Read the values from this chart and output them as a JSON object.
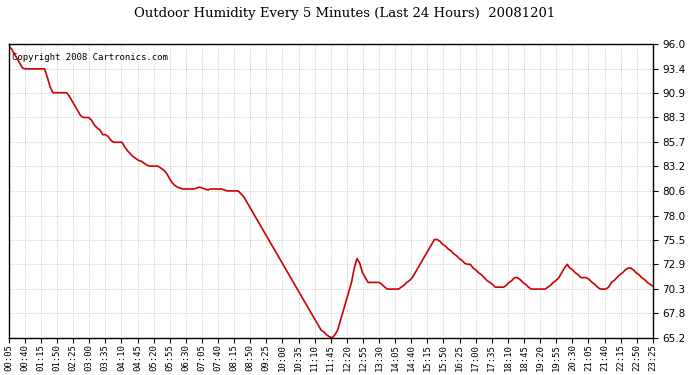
{
  "title": "Outdoor Humidity Every 5 Minutes (Last 24 Hours)  20081201",
  "copyright_text": "Copyright 2008 Cartronics.com",
  "line_color": "#cc0000",
  "background_color": "#ffffff",
  "grid_color": "#bbbbbb",
  "ylim": [
    65.2,
    96.0
  ],
  "yticks": [
    65.2,
    67.8,
    70.3,
    72.9,
    75.5,
    78.0,
    80.6,
    83.2,
    85.7,
    88.3,
    90.9,
    93.4,
    96.0
  ],
  "xtick_labels": [
    "00:05",
    "00:40",
    "01:15",
    "01:50",
    "02:25",
    "03:00",
    "03:35",
    "04:10",
    "04:45",
    "05:20",
    "05:55",
    "06:30",
    "07:05",
    "07:40",
    "08:15",
    "08:50",
    "09:25",
    "10:00",
    "10:35",
    "11:10",
    "11:45",
    "12:20",
    "12:55",
    "13:30",
    "14:05",
    "14:40",
    "15:15",
    "15:50",
    "16:25",
    "17:00",
    "17:35",
    "18:10",
    "18:45",
    "19:20",
    "19:55",
    "20:30",
    "21:05",
    "21:40",
    "22:15",
    "22:50",
    "23:25"
  ],
  "humidity_values": [
    95.8,
    95.5,
    95.0,
    94.5,
    94.0,
    93.5,
    93.4,
    93.4,
    93.4,
    93.4,
    93.4,
    93.4,
    93.4,
    93.4,
    92.5,
    91.5,
    90.9,
    90.9,
    90.9,
    90.9,
    90.9,
    90.9,
    90.5,
    90.0,
    89.5,
    89.0,
    88.5,
    88.3,
    88.3,
    88.3,
    88.0,
    87.5,
    87.2,
    87.0,
    86.5,
    86.5,
    86.3,
    85.9,
    85.7,
    85.7,
    85.7,
    85.7,
    85.2,
    84.8,
    84.5,
    84.2,
    84.0,
    83.8,
    83.7,
    83.5,
    83.3,
    83.2,
    83.2,
    83.2,
    83.2,
    83.0,
    82.8,
    82.5,
    82.0,
    81.5,
    81.2,
    81.0,
    80.9,
    80.8,
    80.8,
    80.8,
    80.8,
    80.8,
    80.9,
    81.0,
    80.9,
    80.8,
    80.7,
    80.8,
    80.8,
    80.8,
    80.8,
    80.8,
    80.7,
    80.6,
    80.6,
    80.6,
    80.6,
    80.6,
    80.3,
    80.0,
    79.5,
    79.0,
    78.5,
    78.0,
    77.5,
    77.0,
    76.5,
    76.0,
    75.5,
    75.0,
    74.5,
    74.0,
    73.5,
    73.0,
    72.5,
    72.0,
    71.5,
    71.0,
    70.5,
    70.0,
    69.5,
    69.0,
    68.5,
    68.0,
    67.5,
    67.0,
    66.5,
    66.0,
    65.8,
    65.5,
    65.3,
    65.2,
    65.5,
    66.0,
    67.0,
    68.0,
    69.0,
    70.0,
    71.0,
    72.5,
    73.5,
    73.0,
    72.0,
    71.5,
    71.0,
    71.0,
    71.0,
    71.0,
    71.0,
    70.8,
    70.5,
    70.3,
    70.3,
    70.3,
    70.3,
    70.3,
    70.5,
    70.7,
    71.0,
    71.2,
    71.5,
    72.0,
    72.5,
    73.0,
    73.5,
    74.0,
    74.5,
    75.0,
    75.5,
    75.5,
    75.3,
    75.0,
    74.8,
    74.5,
    74.3,
    74.0,
    73.8,
    73.5,
    73.3,
    73.0,
    72.9,
    72.9,
    72.5,
    72.3,
    72.0,
    71.8,
    71.5,
    71.2,
    71.0,
    70.8,
    70.5,
    70.5,
    70.5,
    70.5,
    70.7,
    71.0,
    71.2,
    71.5,
    71.5,
    71.3,
    71.0,
    70.8,
    70.5,
    70.3,
    70.3,
    70.3,
    70.3,
    70.3,
    70.3,
    70.5,
    70.7,
    71.0,
    71.2,
    71.5,
    72.0,
    72.5,
    72.9,
    72.5,
    72.3,
    72.0,
    71.8,
    71.5,
    71.5,
    71.5,
    71.3,
    71.0,
    70.8,
    70.5,
    70.3,
    70.3,
    70.3,
    70.5,
    71.0,
    71.2,
    71.5,
    71.8,
    72.0,
    72.3,
    72.5,
    72.5,
    72.3,
    72.0,
    71.8,
    71.5,
    71.3,
    71.0,
    70.8,
    70.6
  ]
}
